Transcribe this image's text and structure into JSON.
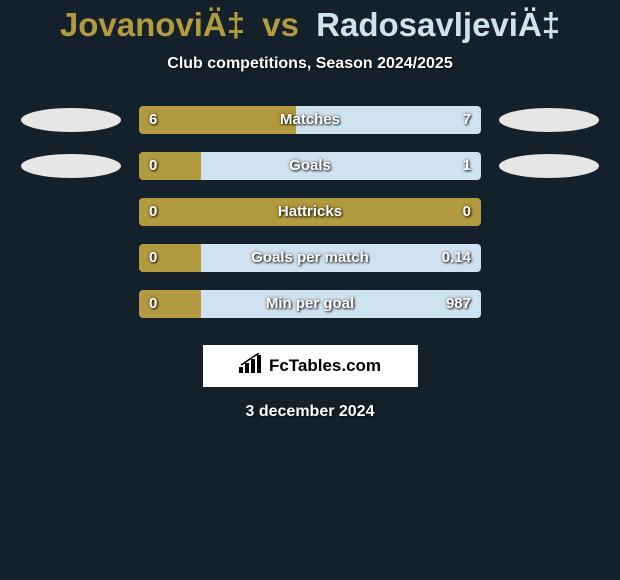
{
  "colors": {
    "background": "#14202a",
    "player1": "#b19a3f",
    "player2": "#cfe2f0",
    "bar_left": "#b19a3f",
    "bar_right": "#cfe2f0",
    "photo_placeholder": "#e6e6e6",
    "text_white": "#ffffff",
    "logo_bg": "#ffffff",
    "logo_text": "#000000"
  },
  "title": {
    "player1": "JovanoviÄ‡",
    "vs": "vs",
    "player2": "RadosavljeviÄ‡"
  },
  "subtitle": "Club competitions, Season 2024/2025",
  "stats": [
    {
      "label": "Matches",
      "left_value": "6",
      "right_value": "7",
      "left_pct": 46,
      "right_pct": 54,
      "show_photos": true
    },
    {
      "label": "Goals",
      "left_value": "0",
      "right_value": "1",
      "left_pct": 18,
      "right_pct": 82,
      "show_photos": true
    },
    {
      "label": "Hattricks",
      "left_value": "0",
      "right_value": "0",
      "left_pct": 100,
      "right_pct": 0,
      "show_photos": false
    },
    {
      "label": "Goals per match",
      "left_value": "0",
      "right_value": "0.14",
      "left_pct": 18,
      "right_pct": 82,
      "show_photos": false
    },
    {
      "label": "Min per goal",
      "left_value": "0",
      "right_value": "987",
      "left_pct": 18,
      "right_pct": 82,
      "show_photos": false
    }
  ],
  "footer": {
    "site": "FcTables.com",
    "date": "3 december 2024"
  }
}
